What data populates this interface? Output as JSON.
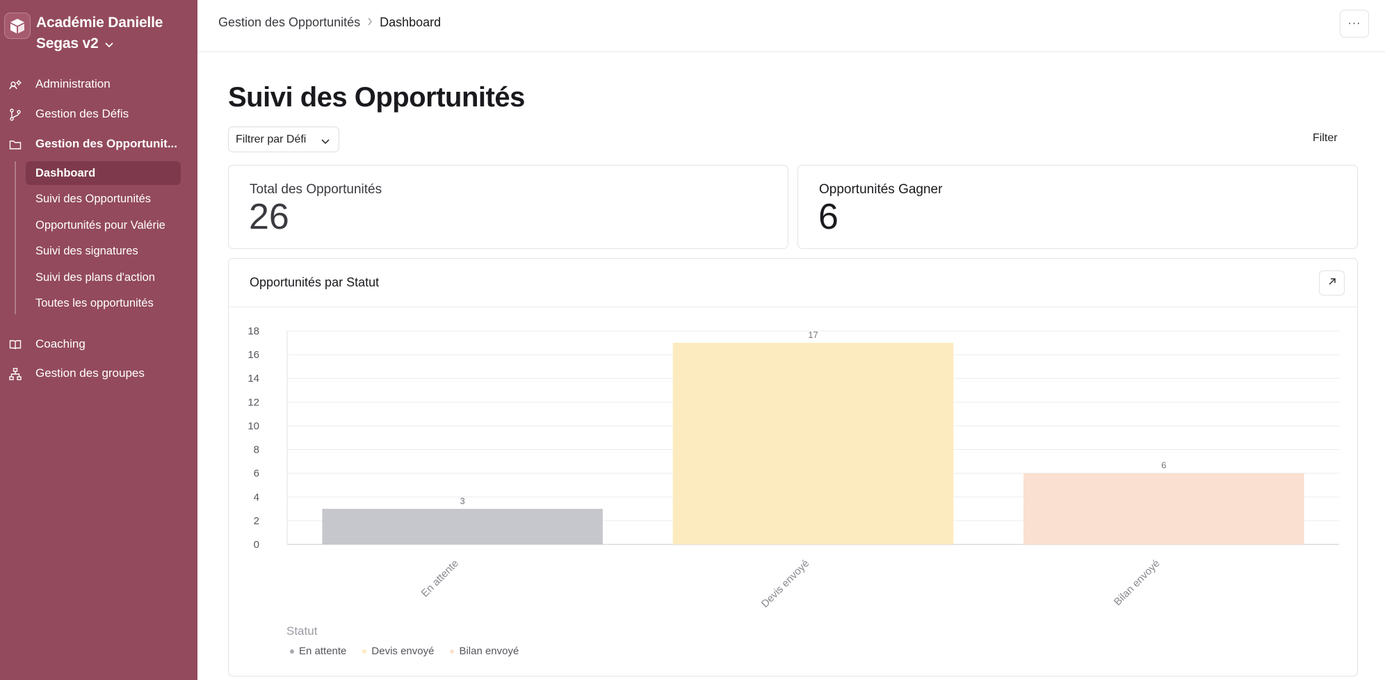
{
  "workspace": {
    "name": "Académie Danielle Segas v2"
  },
  "sidebar": {
    "items": [
      {
        "label": "Administration",
        "icon": "admin-settings-icon"
      },
      {
        "label": "Gestion des Défis",
        "icon": "git-branch-icon"
      },
      {
        "label": "Gestion des Opportunit...",
        "icon": "folder-icon"
      },
      {
        "label": "Coaching",
        "icon": "book-open-icon"
      },
      {
        "label": "Gestion des groupes",
        "icon": "hierarchy-icon"
      }
    ],
    "sub_items": [
      {
        "label": "Dashboard",
        "active": true
      },
      {
        "label": "Suivi des Opportunités"
      },
      {
        "label": "Opportunités pour Valérie"
      },
      {
        "label": "Suivi des signatures"
      },
      {
        "label": "Suivi des plans d'action"
      },
      {
        "label": "Toutes les opportunités"
      }
    ]
  },
  "header": {
    "breadcrumb_parent": "Gestion des Opportunités",
    "breadcrumb_current": "Dashboard",
    "more_label": "···"
  },
  "page": {
    "title": "Suivi des Opportunités",
    "filter_dropdown": "Filtrer par Défi",
    "filter_link": "Filter"
  },
  "stats": [
    {
      "label": "Total des Opportunités",
      "value": "26"
    },
    {
      "label": "Opportunités Gagner",
      "value": "6"
    }
  ],
  "chart_panel": {
    "title": "Opportunités par Statut",
    "legend_title": "Statut"
  },
  "chart_data": {
    "type": "bar",
    "title": "Opportunités par Statut",
    "categories": [
      "En attente",
      "Devis envoyé",
      "Bilan envoyé"
    ],
    "values": [
      3,
      17,
      6
    ],
    "colors": [
      "#c6c7cc",
      "#fcebbe",
      "#fae0d0"
    ],
    "ylim": [
      0,
      18
    ],
    "yticks": [
      0,
      2,
      4,
      6,
      8,
      10,
      12,
      14,
      16,
      18
    ],
    "grid": true,
    "legend_title": "Statut",
    "legend": [
      "En attente",
      "Devis envoyé",
      "Bilan envoyé"
    ],
    "legend_position": "bottom-left"
  }
}
